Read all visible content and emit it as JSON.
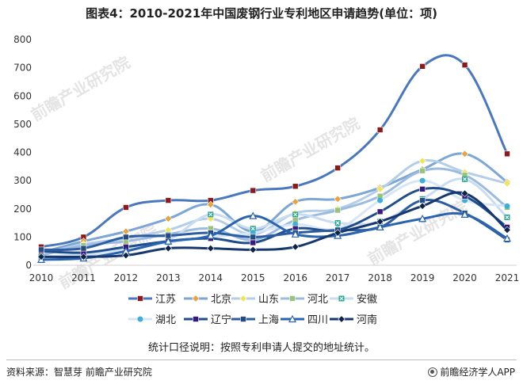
{
  "page": {
    "title": "图表4：2010-2021年中国废钢行业专利地区申请趋势(单位：项)",
    "note": "统计口径说明：按照专利申请人提交的地址统计。",
    "source": "资料来源：智慧芽 前瞻产业研究院",
    "brand": "前瞻经济学人APP",
    "watermark": "前瞻产业研究院"
  },
  "chart_data": {
    "type": "line",
    "smooth": true,
    "title": "",
    "xlabel": "",
    "ylabel": "",
    "x": [
      "2010",
      "2011",
      "2012",
      "2013",
      "2014",
      "2015",
      "2016",
      "2017",
      "2018",
      "2019",
      "2020",
      "2021"
    ],
    "ylim": [
      0,
      800
    ],
    "yticks": [
      0,
      100,
      200,
      300,
      400,
      500,
      600,
      700,
      800
    ],
    "grid": false,
    "legend_position": "bottom",
    "series": [
      {
        "name": "江苏",
        "color": "#4a78be",
        "marker": "square",
        "marker_color": "#8b1a1a",
        "values": [
          65,
          100,
          205,
          230,
          230,
          265,
          280,
          345,
          480,
          705,
          710,
          395
        ]
      },
      {
        "name": "北京",
        "color": "#7ba6d6",
        "marker": "diamond",
        "marker_color": "#e8a33b",
        "values": [
          45,
          85,
          120,
          165,
          215,
          120,
          225,
          235,
          275,
          340,
          395,
          295
        ]
      },
      {
        "name": "山东",
        "color": "#b4cde8",
        "marker": "diamond",
        "marker_color": "#f2e45a",
        "values": [
          40,
          75,
          95,
          125,
          165,
          110,
          185,
          200,
          270,
          370,
          330,
          290
        ]
      },
      {
        "name": "河北",
        "color": "#9bbce0",
        "marker": "square",
        "marker_color": "#9ac27a",
        "values": [
          35,
          70,
          85,
          110,
          130,
          90,
          160,
          195,
          245,
          335,
          320,
          205
        ]
      },
      {
        "name": "安徽",
        "color": "#c9dcf0",
        "marker": "x",
        "marker_color": "#2aa68c",
        "values": [
          30,
          40,
          60,
          90,
          180,
          130,
          180,
          150,
          155,
          235,
          305,
          170
        ]
      },
      {
        "name": "湖北",
        "color": "#d6e6f5",
        "marker": "circle",
        "marker_color": "#3cb0d8",
        "values": [
          28,
          35,
          55,
          80,
          100,
          115,
          145,
          130,
          230,
          300,
          230,
          210
        ]
      },
      {
        "name": "辽宁",
        "color": "#1f4e8c",
        "marker": "square",
        "marker_color": "#3a1a78",
        "values": [
          50,
          45,
          65,
          85,
          95,
          80,
          130,
          125,
          190,
          270,
          245,
          135
        ]
      },
      {
        "name": "上海",
        "color": "#2d5da0",
        "marker": "square",
        "marker_color": "#264b7e",
        "values": [
          55,
          60,
          100,
          105,
          115,
          100,
          115,
          125,
          135,
          230,
          185,
          90
        ]
      },
      {
        "name": "四川",
        "color": "#2a64b0",
        "marker": "triangle",
        "marker_color": "#2a64b0",
        "values": [
          20,
          25,
          50,
          85,
          105,
          175,
          110,
          105,
          135,
          165,
          180,
          95
        ]
      },
      {
        "name": "河南",
        "color": "#17386e",
        "marker": "diamond",
        "marker_color": "#0f2347",
        "values": [
          30,
          30,
          35,
          60,
          60,
          55,
          65,
          115,
          155,
          210,
          255,
          125
        ]
      }
    ]
  }
}
